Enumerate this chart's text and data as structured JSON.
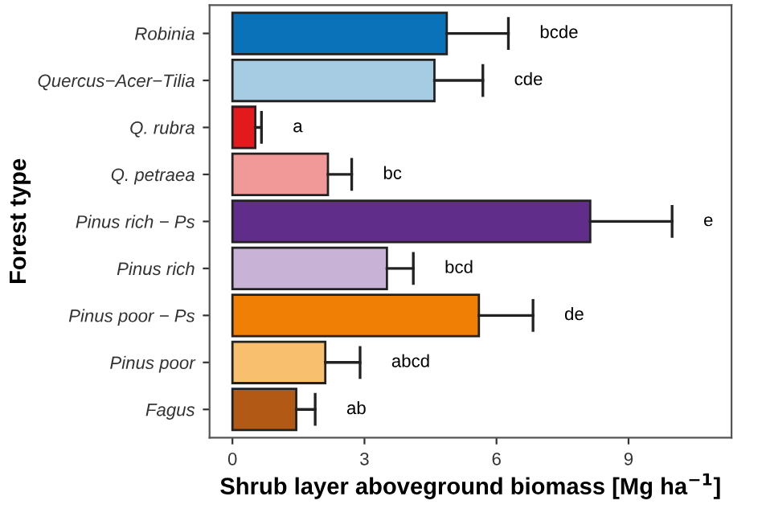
{
  "chart_data": {
    "type": "bar",
    "orientation": "horizontal",
    "xlabel": "Shrub layer aboveground biomass [Mg ha$^{−1}$]",
    "ylabel": "Forest type",
    "categories": [
      "Robinia",
      "Quercus−Acer−Tilia",
      "Q. rubra",
      "Q. petraea",
      "Pinus rich − Ps",
      "Pinus rich",
      "Pinus poor − Ps",
      "Pinus poor",
      "Fagus"
    ],
    "values": [
      4.87,
      4.59,
      0.52,
      2.17,
      8.13,
      3.51,
      5.6,
      2.11,
      1.45
    ],
    "errors": [
      [
        4.87,
        6.27
      ],
      [
        4.59,
        5.69
      ],
      [
        0.52,
        0.66
      ],
      [
        2.17,
        2.71
      ],
      [
        8.13,
        9.99
      ],
      [
        3.51,
        4.11
      ],
      [
        5.6,
        6.83
      ],
      [
        2.11,
        2.9
      ],
      [
        1.45,
        1.88
      ]
    ],
    "colors": [
      "#0a72b8",
      "#a6cce3",
      "#e31a1c",
      "#f19999",
      "#602d8a",
      "#c8b2d6",
      "#f07f05",
      "#f8bf6f",
      "#b25a15"
    ],
    "xlim": [
      -0.52,
      11.34
    ],
    "xticks": [
      0,
      3,
      6,
      9
    ],
    "grid": false,
    "legend": false,
    "annotations": [
      "bcde",
      "cde",
      "a",
      "bc",
      "e",
      "bcd",
      "de",
      "abcd",
      "ab"
    ]
  }
}
